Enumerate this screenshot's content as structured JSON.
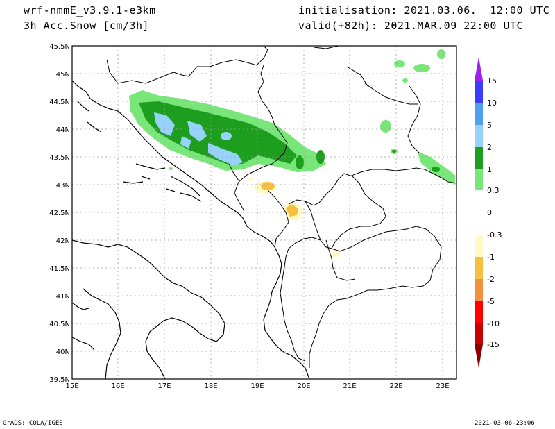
{
  "header": {
    "model": "wrf-nmmE_v3.9.1-e3km",
    "field": "3h Acc.Snow [cm/3h]",
    "init": "initialisation: 2021.03.06.  12:00 UTC",
    "valid": "valid(+82h): 2021.MAR.09 22:00 UTC"
  },
  "map": {
    "lon_ticks": [
      "15E",
      "16E",
      "17E",
      "18E",
      "19E",
      "20E",
      "21E",
      "22E",
      "23E"
    ],
    "lat_ticks": [
      "45.5N",
      "45N",
      "44.5N",
      "44N",
      "43.5N",
      "43N",
      "42.5N",
      "42N",
      "41.5N",
      "41N",
      "40.5N",
      "40N",
      "39.5N"
    ],
    "lon_range": [
      15,
      23.3
    ],
    "lat_range": [
      39.5,
      45.5
    ],
    "grid": true
  },
  "colorbar": {
    "labels": [
      "15",
      "10",
      "5",
      "2",
      "1",
      "0.3",
      "0",
      "-0.3",
      "-1",
      "-2",
      "-5",
      "-10",
      "-15"
    ],
    "colors": {
      "top_triangle": "#a020f0",
      "b10_15": "#3c3cff",
      "b5_10": "#50a0f0",
      "b2_5": "#96d2fa",
      "b1_2": "#1e9e1e",
      "b03_1": "#78e678",
      "b0_03": "#ffffff",
      "bm03_0": "#ffffff",
      "bm1_m03": "#fffac8",
      "bm2_m1": "#f5c040",
      "bm5_m2": "#f59040",
      "bm10_m5": "#ff0000",
      "bm15_m10": "#c80000",
      "bottom_triangle": "#8b0000"
    }
  },
  "footer": {
    "left": "GrADS: COLA/IGES",
    "right": "2021-03-06-23:06"
  }
}
